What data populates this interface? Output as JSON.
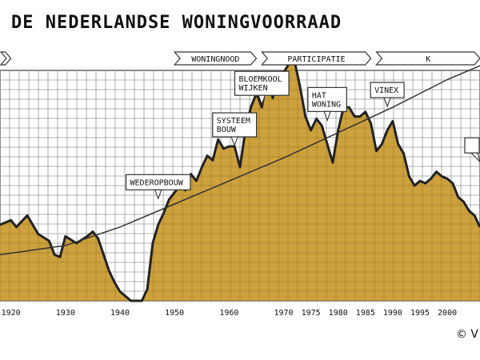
{
  "chart_data": {
    "type": "area",
    "title": "DE NEDERLANDSE WONINGVOORRAAD",
    "xlabel": "",
    "ylabel": "",
    "xlim": [
      1918,
      2006
    ],
    "ylim": [
      0,
      100
    ],
    "grid": true,
    "colors": {
      "fill": "#c9992d",
      "line": "#222222",
      "grid": "#9a9a9a",
      "bg": "#ffffff"
    },
    "x_ticks": [
      1920,
      1930,
      1940,
      1950,
      1960,
      1970,
      1975,
      1980,
      1985,
      1990,
      1995,
      2000
    ],
    "x_tick_labels": [
      "1920",
      "1930",
      "1940",
      "1950",
      "1960",
      "1970",
      "1975",
      "1980",
      "1985",
      "1990",
      "1995",
      "2000"
    ],
    "periods": [
      {
        "label": "",
        "start": 1918,
        "end": 1920
      },
      {
        "label": "WONINGNOOD",
        "start": 1950,
        "end": 1965
      },
      {
        "label": "PARTICIPATIE",
        "start": 1966,
        "end": 1986
      },
      {
        "label": "K",
        "start": 1987,
        "end": 2006
      }
    ],
    "series": [
      {
        "name": "",
        "type": "area",
        "x": [
          1918,
          1919,
          1920,
          1921,
          1923,
          1925,
          1927,
          1928,
          1929,
          1930,
          1932,
          1934,
          1935,
          1936,
          1937,
          1938,
          1939,
          1940,
          1941,
          1942,
          1943,
          1944,
          1945,
          1946,
          1947,
          1948,
          1949,
          1950,
          1951,
          1952,
          1953,
          1954,
          1955,
          1956,
          1957,
          1958,
          1959,
          1960,
          1961,
          1962,
          1963,
          1964,
          1965,
          1966,
          1967,
          1968,
          1969,
          1970,
          1971,
          1972,
          1973,
          1974,
          1975,
          1976,
          1977,
          1978,
          1979,
          1980,
          1981,
          1982,
          1983,
          1984,
          1985,
          1986,
          1987,
          1988,
          1989,
          1990,
          1991,
          1992,
          1993,
          1994,
          1995,
          1996,
          1997,
          1998,
          1999,
          2000,
          2001,
          2002,
          2003,
          2004,
          2005,
          2006
        ],
        "values": [
          33,
          34,
          35,
          32,
          37,
          29,
          26,
          20,
          19,
          28,
          25,
          28,
          30,
          27,
          20,
          13,
          8,
          4,
          2,
          0,
          0,
          0,
          5,
          25,
          33,
          38,
          44,
          47,
          50,
          48,
          55,
          52,
          58,
          63,
          61,
          70,
          66,
          67,
          67,
          58,
          74,
          84,
          90,
          84,
          97,
          88,
          98,
          99,
          103,
          104,
          93,
          80,
          74,
          79,
          76,
          68,
          60,
          74,
          84,
          84,
          80,
          80,
          82,
          77,
          65,
          68,
          74,
          78,
          68,
          64,
          54,
          50,
          52,
          51,
          53,
          56,
          54,
          53,
          51,
          45,
          43,
          39,
          37,
          32
        ]
      },
      {
        "name": "",
        "type": "line",
        "x": [
          1918,
          1930,
          1940,
          1950,
          1960,
          1970,
          1980,
          1990,
          2000,
          2006
        ],
        "values": [
          20,
          24,
          32,
          42,
          52,
          62,
          73,
          84,
          96,
          102
        ]
      }
    ],
    "annotations": [
      {
        "lines": [
          "WEDEROPBOUW"
        ],
        "x": 1947,
        "y": 44
      },
      {
        "lines": [
          "SYSTEEM",
          "BOUW"
        ],
        "x": 1961,
        "y": 67
      },
      {
        "lines": [
          "BLOEMKOOL",
          "WIJKEN"
        ],
        "x": 1966,
        "y": 85
      },
      {
        "lines": [
          "HAT",
          "WONING"
        ],
        "x": 1978,
        "y": 78
      },
      {
        "lines": [
          "VINEX"
        ],
        "x": 1989,
        "y": 84
      },
      {
        "lines": [
          ""
        ],
        "x": 2006,
        "y": 60
      }
    ],
    "copyright": "© V"
  }
}
